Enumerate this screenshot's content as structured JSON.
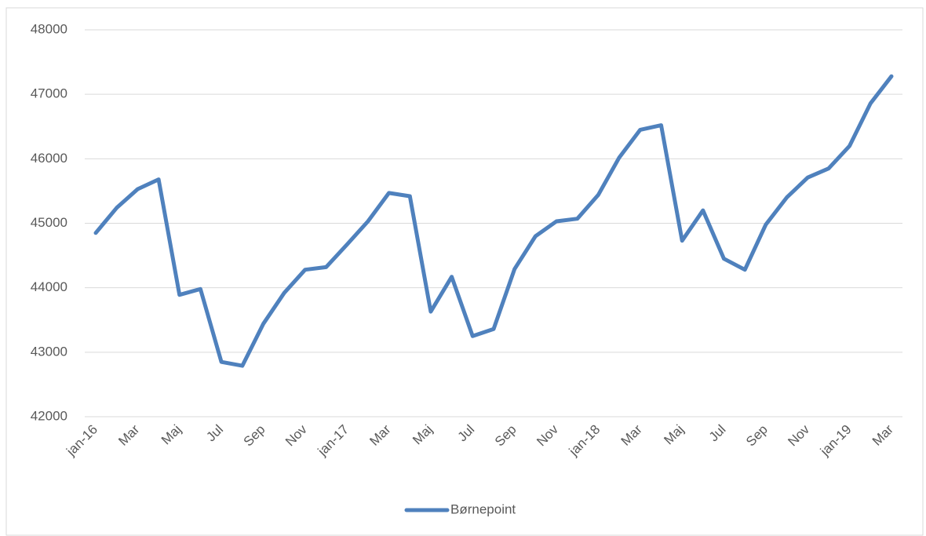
{
  "chart_data": {
    "type": "line",
    "categories": [
      "jan-16",
      null,
      "Mar",
      null,
      "Maj",
      null,
      "Jul",
      null,
      "Sep",
      null,
      "Nov",
      null,
      "jan-17",
      null,
      "Mar",
      null,
      "Maj",
      null,
      "Jul",
      null,
      "Sep",
      null,
      "Nov",
      null,
      "jan-18",
      null,
      "Mar",
      null,
      "Maj",
      null,
      "Jul",
      null,
      "Sep",
      null,
      "Nov",
      null,
      "jan-19",
      null,
      "Mar"
    ],
    "series": [
      {
        "name": "Børnepoint",
        "color": "#4f81bd",
        "values": [
          44850,
          45240,
          45530,
          45680,
          43890,
          43980,
          42850,
          42790,
          43440,
          43920,
          44280,
          44320,
          44670,
          45030,
          45470,
          45420,
          43630,
          44170,
          43250,
          43360,
          44290,
          44800,
          45030,
          45070,
          45440,
          46020,
          46450,
          46520,
          44730,
          45200,
          44450,
          44280,
          44980,
          45400,
          45710,
          45850,
          46200,
          46860,
          47280
        ]
      }
    ],
    "ylim": [
      42000,
      48000
    ],
    "yticks": [
      42000,
      43000,
      44000,
      45000,
      46000,
      47000,
      48000
    ],
    "grid": true,
    "legend": "bottom"
  }
}
